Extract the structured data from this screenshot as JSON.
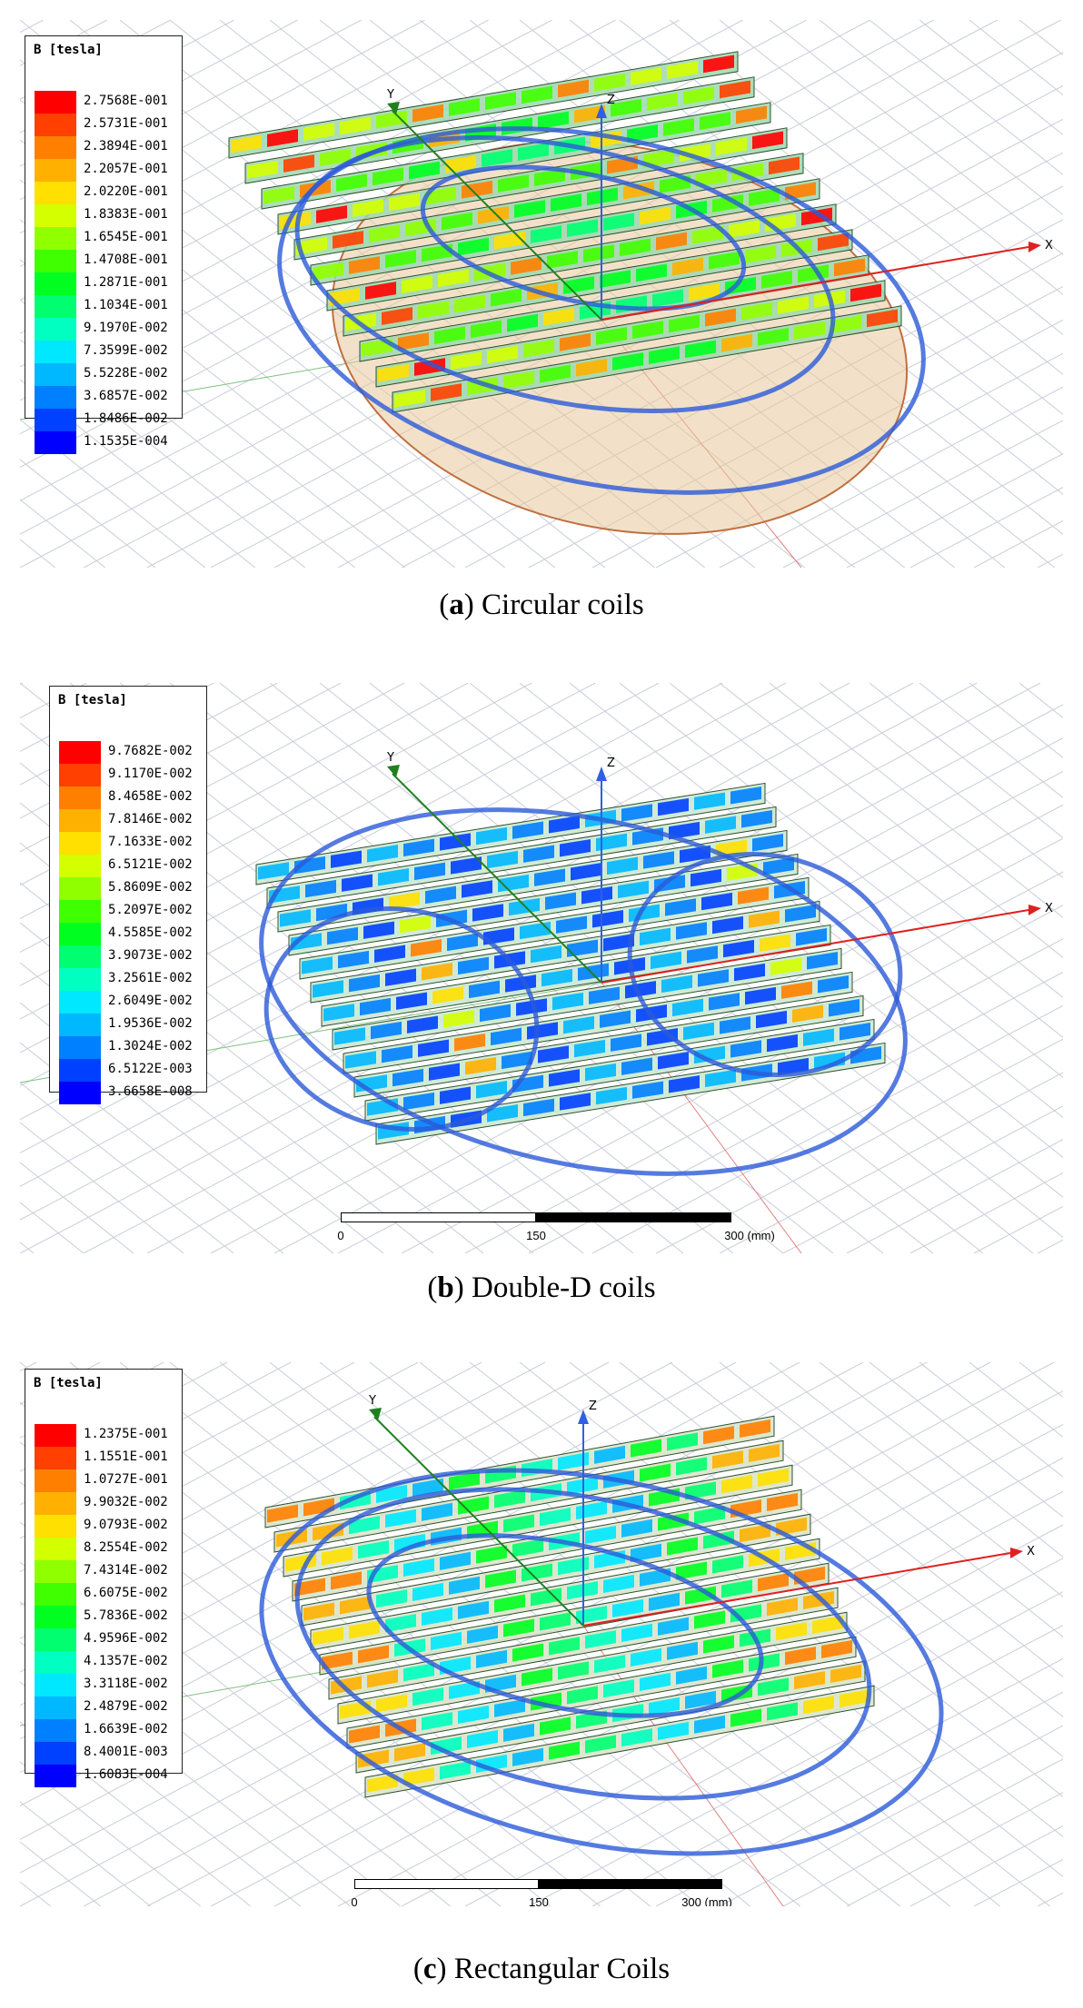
{
  "figures": [
    {
      "id": "a",
      "caption_letter": "a",
      "caption_text": "Circular coils",
      "legend_title": "B [tesla]",
      "legend_values": [
        "2.7568E-001",
        "2.5731E-001",
        "2.3894E-001",
        "2.2057E-001",
        "2.0220E-001",
        "1.8383E-001",
        "1.6545E-001",
        "1.4708E-001",
        "1.2871E-001",
        "1.1034E-001",
        "9.1970E-002",
        "7.3599E-002",
        "5.5228E-002",
        "3.6857E-002",
        "1.8486E-002",
        "1.1535E-004"
      ],
      "axes": [
        "Y",
        "Z",
        "X"
      ],
      "scale": null
    },
    {
      "id": "b",
      "caption_letter": "b",
      "caption_text": "Double-D coils",
      "legend_title": "B [tesla]",
      "legend_values": [
        "9.7682E-002",
        "9.1170E-002",
        "8.4658E-002",
        "7.8146E-002",
        "7.1633E-002",
        "6.5121E-002",
        "5.8609E-002",
        "5.2097E-002",
        "4.5585E-002",
        "3.9073E-002",
        "3.2561E-002",
        "2.6049E-002",
        "1.9536E-002",
        "1.3024E-002",
        "6.5122E-003",
        "3.6658E-008"
      ],
      "axes": [
        "Y",
        "Z",
        "X"
      ],
      "scale": {
        "ticks": [
          "0",
          "150",
          "300 (mm)"
        ]
      }
    },
    {
      "id": "c",
      "caption_letter": "c",
      "caption_text": "Rectangular Coils",
      "legend_title": "B [tesla]",
      "legend_values": [
        "1.2375E-001",
        "1.1551E-001",
        "1.0727E-001",
        "9.9032E-002",
        "9.0793E-002",
        "8.2554E-002",
        "7.4314E-002",
        "6.6075E-002",
        "5.7836E-002",
        "4.9596E-002",
        "4.1357E-002",
        "3.3118E-002",
        "2.4879E-002",
        "1.6639E-002",
        "8.4001E-003",
        "1.6083E-004"
      ],
      "axes": [
        "Y",
        "Z",
        "X"
      ],
      "scale": {
        "ticks": [
          "0",
          "150",
          "300 (mm)"
        ]
      }
    }
  ],
  "colormap": [
    "#ff0000",
    "#ff4000",
    "#ff8000",
    "#ffb000",
    "#ffe000",
    "#d4ff00",
    "#90ff00",
    "#40ff00",
    "#00ff20",
    "#00ff70",
    "#00ffc0",
    "#00e8ff",
    "#00b8ff",
    "#0080ff",
    "#0040ff",
    "#0000ff"
  ]
}
